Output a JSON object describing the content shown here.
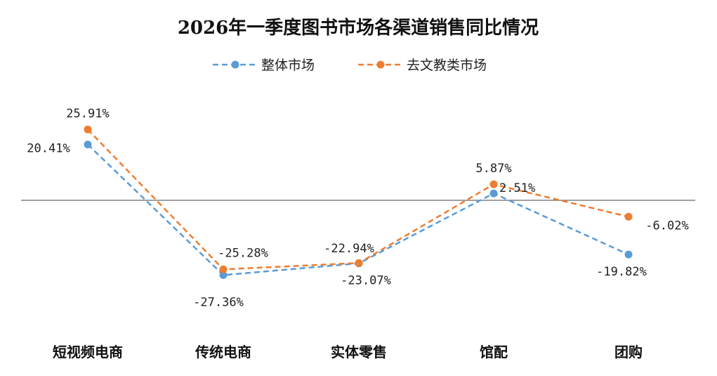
{
  "chart_data": {
    "type": "line",
    "title": "2026年一季度图书市场各渠道销售同比情况",
    "categories": [
      "短视频电商",
      "传统电商",
      "实体零售",
      "馆配",
      "团购"
    ],
    "unit": "%",
    "series": [
      {
        "name": "整体市场",
        "color": "#5b9bd5",
        "values": [
          20.41,
          -27.36,
          -23.07,
          2.51,
          -19.82
        ],
        "labels": [
          "20.41%",
          "-27.36%",
          "-23.07%",
          "2.51%",
          "-19.82%"
        ]
      },
      {
        "name": "去文教类市场",
        "color": "#ed7d31",
        "values": [
          25.91,
          -25.28,
          -22.94,
          5.87,
          -6.02
        ],
        "labels": [
          "25.91%",
          "-25.28%",
          "-22.94%",
          "5.87%",
          "-6.02%"
        ]
      }
    ],
    "ylim": [
      -40,
      40
    ],
    "zero_line": true,
    "grid": false,
    "legend": "top-center",
    "line_style": "dashed"
  }
}
